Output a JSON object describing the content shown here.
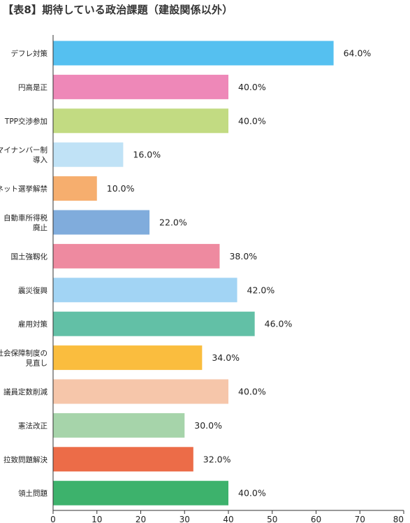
{
  "page": {
    "title": "【表8】期待している政治課題（建設関係以外）"
  },
  "chart_data": {
    "type": "bar",
    "orientation": "horizontal",
    "title": "【表8】期待している政治課題（建設関係以外）",
    "categories": [
      [
        "デフレ対策"
      ],
      [
        "円高是正"
      ],
      [
        "TPP交渉参加"
      ],
      [
        "マイナンバー制",
        "導入"
      ],
      [
        "ネット選挙解禁"
      ],
      [
        "自動車所得税",
        "廃止"
      ],
      [
        "国土強靱化"
      ],
      [
        "震災復興"
      ],
      [
        "雇用対策"
      ],
      [
        "社会保障制度の",
        "見直し"
      ],
      [
        "議員定数削減"
      ],
      [
        "憲法改正"
      ],
      [
        "拉致問題解決"
      ],
      [
        "領土問題"
      ]
    ],
    "values": [
      64.0,
      40.0,
      40.0,
      16.0,
      10.0,
      22.0,
      38.0,
      42.0,
      46.0,
      34.0,
      40.0,
      30.0,
      32.0,
      40.0
    ],
    "value_labels": [
      "64.0%",
      "40.0%",
      "40.0%",
      "16.0%",
      "10.0%",
      "22.0%",
      "38.0%",
      "42.0%",
      "46.0%",
      "34.0%",
      "40.0%",
      "30.0%",
      "32.0%",
      "40.0%"
    ],
    "colors": [
      "#55c0f0",
      "#ee88b8",
      "#c2db82",
      "#c0e2f6",
      "#f6ae6e",
      "#80acdc",
      "#ee8aa0",
      "#a2d4f4",
      "#62c0a6",
      "#fabd3e",
      "#f6c6aa",
      "#a6d4aa",
      "#ec6c48",
      "#3db26c"
    ],
    "xlim": [
      0,
      80
    ],
    "xticks": [
      "0",
      "10",
      "20",
      "30",
      "40",
      "50",
      "60",
      "70",
      "80"
    ],
    "grid": false
  }
}
